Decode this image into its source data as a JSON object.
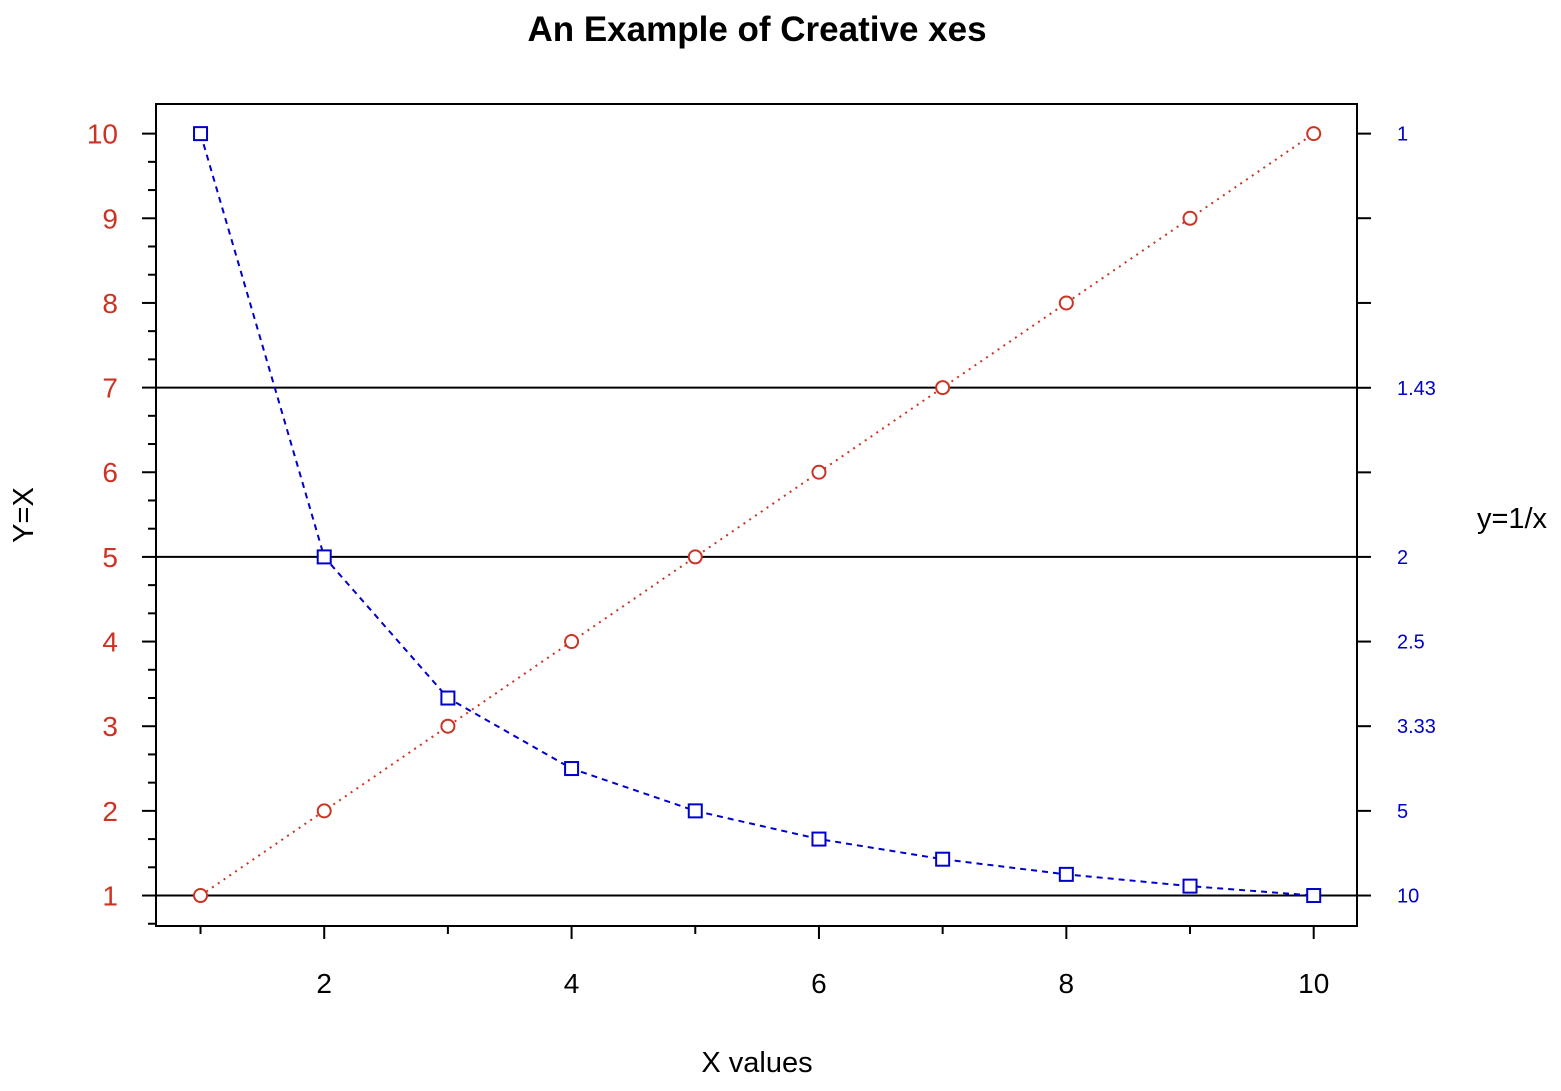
{
  "chart_data": {
    "type": "line",
    "title": "An Example of Creative xes",
    "xlabel": "X values",
    "ylabel": "Y=X",
    "y2label": "y=1/x",
    "x": [
      1,
      2,
      3,
      4,
      5,
      6,
      7,
      8,
      9,
      10
    ],
    "xlim": [
      0.64,
      10.35
    ],
    "ylim": [
      0.64,
      10.35
    ],
    "x_ticks": [
      2,
      4,
      6,
      8,
      10
    ],
    "x_minor_ticks": [
      1,
      3,
      5,
      7,
      9
    ],
    "y_ticks": [
      1,
      2,
      3,
      4,
      5,
      6,
      7,
      8,
      9,
      10
    ],
    "y2_ticks": [
      {
        "value": 10,
        "label": "10"
      },
      {
        "value": 5,
        "label": "5"
      },
      {
        "value": 3.333,
        "label": "3.33"
      },
      {
        "value": 2.5,
        "label": "2.5"
      },
      {
        "value": 2,
        "label": "2"
      },
      {
        "value": 1.667,
        "label": ""
      },
      {
        "value": 1.429,
        "label": "1.43"
      },
      {
        "value": 1.25,
        "label": ""
      },
      {
        "value": 1.111,
        "label": ""
      },
      {
        "value": 1,
        "label": "1"
      }
    ],
    "reference_lines_y": [
      1,
      5,
      7
    ],
    "series": [
      {
        "values": [
          1,
          2,
          3,
          4,
          5,
          6,
          7,
          8,
          9,
          10
        ],
        "color": "#cc3322",
        "marker": "circle",
        "line": "dotted",
        "axis": "left"
      },
      {
        "values": [
          10,
          5,
          3.333,
          2.5,
          2,
          1.667,
          1.429,
          1.25,
          1.111,
          1
        ],
        "color": "#0000cc",
        "marker": "square",
        "line": "dashed",
        "axis": "right"
      }
    ],
    "colors": {
      "left_axis": "#cc3322",
      "right_axis": "#0000cc",
      "frame": "#000000"
    }
  }
}
